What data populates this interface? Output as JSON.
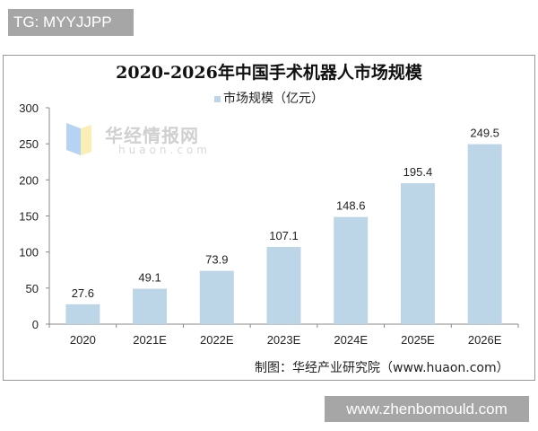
{
  "tag_label": "TG: MYYJJPP",
  "footer_label": "www.zhenbomould.com",
  "source": "制图：华经产业研究院（www.huaon.com）",
  "watermark": {
    "cn": "华经情报网",
    "en": "huaon.com"
  },
  "colors": {
    "bar": "#bcd6e8"
  },
  "chart_data": {
    "type": "bar",
    "title": "2020-2026年中国手术机器人市场规模",
    "categories": [
      "2020",
      "2021E",
      "2022E",
      "2023E",
      "2024E",
      "2025E",
      "2026E"
    ],
    "series": [
      {
        "name": "市场规模（亿元）",
        "values": [
          27.6,
          49.1,
          73.9,
          107.1,
          148.6,
          195.4,
          249.5
        ]
      }
    ],
    "data_labels": [
      "27.6",
      "49.1",
      "73.9",
      "107.1",
      "148.6",
      "195.4",
      "249.5"
    ],
    "yticks": [
      "0",
      "50",
      "100",
      "150",
      "200",
      "250",
      "300"
    ],
    "ylim": [
      0,
      300
    ],
    "grid": false,
    "legend": "top"
  }
}
